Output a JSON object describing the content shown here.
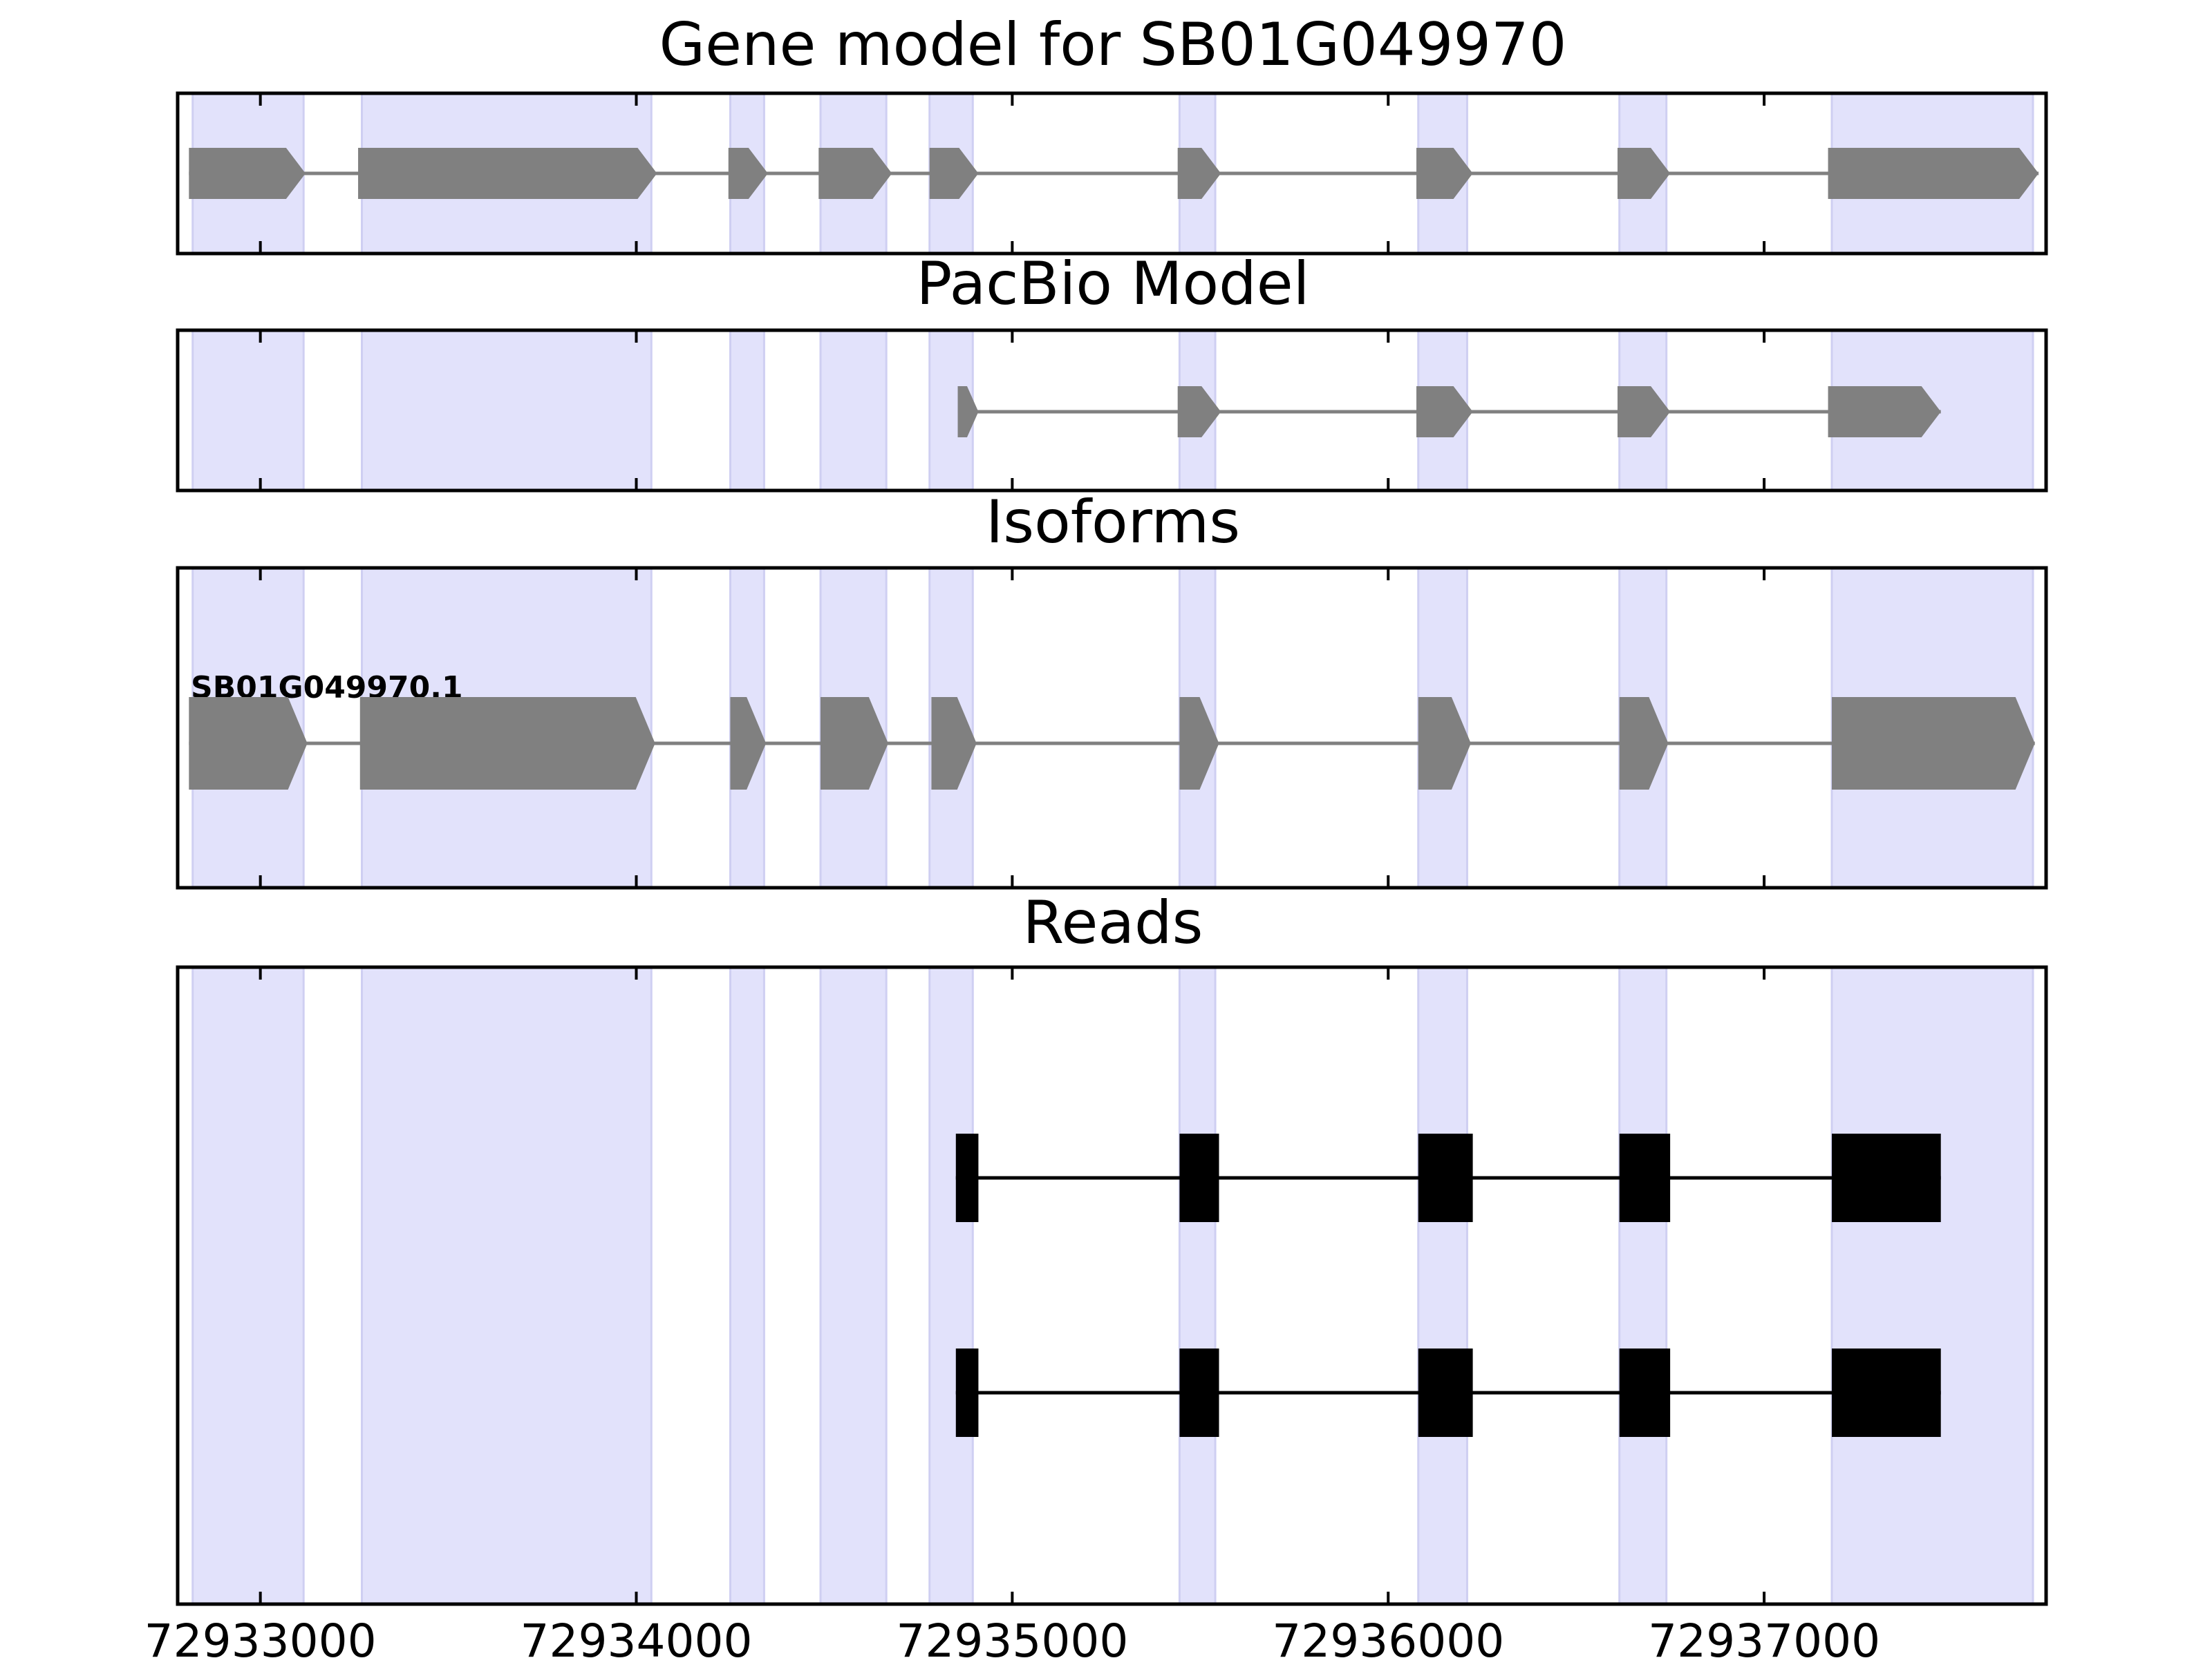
{
  "chart_data": {
    "type": "gene-track",
    "x_ticks": [
      72933000,
      72934000,
      72935000,
      72936000,
      72937000
    ],
    "x_tick_labels": [
      "72933000",
      "72934000",
      "72935000",
      "72936000",
      "72937000"
    ],
    "x_range": [
      72932780,
      72937750
    ],
    "exon_regions": [
      [
        72932820,
        72933115
      ],
      [
        72933270,
        72934040
      ],
      [
        72934250,
        72934340
      ],
      [
        72934490,
        72934665
      ],
      [
        72934780,
        72934895
      ],
      [
        72935445,
        72935540
      ],
      [
        72936080,
        72936210
      ],
      [
        72936615,
        72936740
      ],
      [
        72937180,
        72937715
      ]
    ],
    "highlight_color": "#e2e2fb",
    "exon_color": "#808080",
    "read_color": "#000000",
    "panels": [
      {
        "title": "Gene model for SB01G049970",
        "strand": "+",
        "exons": [
          [
            72932810,
            72933120
          ],
          [
            72933260,
            72934055
          ],
          [
            72934245,
            72934350
          ],
          [
            72934485,
            72934680
          ],
          [
            72934780,
            72934910
          ],
          [
            72935440,
            72935555
          ],
          [
            72936075,
            72936225
          ],
          [
            72936610,
            72936750
          ],
          [
            72937170,
            72937730
          ]
        ]
      },
      {
        "title": "PacBio Model",
        "strand": "+",
        "exons": [
          [
            72934855,
            72934910
          ],
          [
            72935440,
            72935555
          ],
          [
            72936075,
            72936225
          ],
          [
            72936610,
            72936750
          ],
          [
            72937170,
            72937470
          ]
        ]
      },
      {
        "title": "Isoforms",
        "isoform_label": "SB01G049970.1",
        "strand": "+",
        "exons": [
          [
            72932810,
            72933125
          ],
          [
            72933265,
            72934050
          ],
          [
            72934250,
            72934345
          ],
          [
            72934490,
            72934670
          ],
          [
            72934785,
            72934905
          ],
          [
            72935445,
            72935550
          ],
          [
            72936080,
            72936220
          ],
          [
            72936615,
            72936745
          ],
          [
            72937180,
            72937720
          ]
        ]
      },
      {
        "title": "Reads",
        "reads": [
          [
            [
              72934850,
              72934910
            ],
            [
              72935445,
              72935550
            ],
            [
              72936080,
              72936225
            ],
            [
              72936615,
              72936750
            ],
            [
              72937180,
              72937470
            ]
          ],
          [
            [
              72934850,
              72934910
            ],
            [
              72935445,
              72935550
            ],
            [
              72936080,
              72936225
            ],
            [
              72936615,
              72936750
            ],
            [
              72937180,
              72937470
            ]
          ]
        ]
      }
    ]
  }
}
